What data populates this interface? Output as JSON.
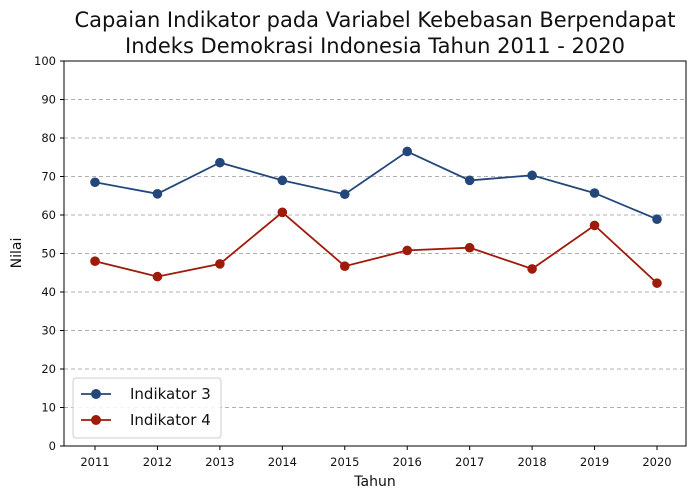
{
  "chart_data": {
    "type": "line",
    "title_line1": "Capaian Indikator pada Variabel Kebebasan Berpendapat",
    "title_line2": "Indeks Demokrasi Indonesia Tahun 2011 - 2020",
    "xlabel": "Tahun",
    "ylabel": "Nilai",
    "x": [
      "2011",
      "2012",
      "2013",
      "2014",
      "2015",
      "2016",
      "2017",
      "2018",
      "2019",
      "2020"
    ],
    "ylim": [
      0,
      100
    ],
    "yticks": [
      "0",
      "10",
      "20",
      "30",
      "40",
      "50",
      "60",
      "70",
      "80",
      "90",
      "100"
    ],
    "grid": "y-dashed",
    "legend_position": "lower-left",
    "series": [
      {
        "name": "Indikator 3",
        "color": "#24477b",
        "values": [
          68.5,
          65.5,
          73.6,
          69.0,
          65.4,
          76.5,
          69.0,
          70.3,
          65.7,
          58.9
        ]
      },
      {
        "name": "Indikator 4",
        "color": "#9e1a0a",
        "values": [
          48.0,
          44.0,
          47.3,
          60.7,
          46.7,
          50.8,
          51.5,
          46.0,
          57.3,
          42.3
        ]
      }
    ]
  }
}
